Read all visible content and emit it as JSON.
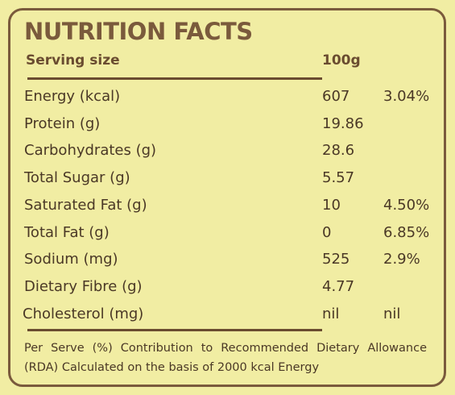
{
  "title": "NUTRITION FACTS",
  "serving": {
    "label": "Serving size",
    "value": "100g"
  },
  "rows": [
    [
      "Energy (kcal)",
      "607",
      "3.04%"
    ],
    [
      "Protein (g)",
      "19.86"
    ],
    [
      "Carbohydrates (g)",
      "28.6"
    ],
    [
      "Total Sugar (g)",
      "5.57"
    ],
    [
      "Saturated Fat (g)",
      "10",
      "4.50%"
    ],
    [
      "Total Fat (g)",
      "0",
      "6.85%"
    ],
    [
      "Sodium (mg)",
      "525",
      "2.9%"
    ],
    [
      "Dietary Fibre (g)",
      "4.77"
    ],
    [
      "Cholesterol (mg)",
      "nil",
      "nil"
    ]
  ],
  "footer": "Per Serve (%) Contribution to Recommended Dietary Allowance (RDA) Calculated on the basis of 2000 kcal Energy"
}
